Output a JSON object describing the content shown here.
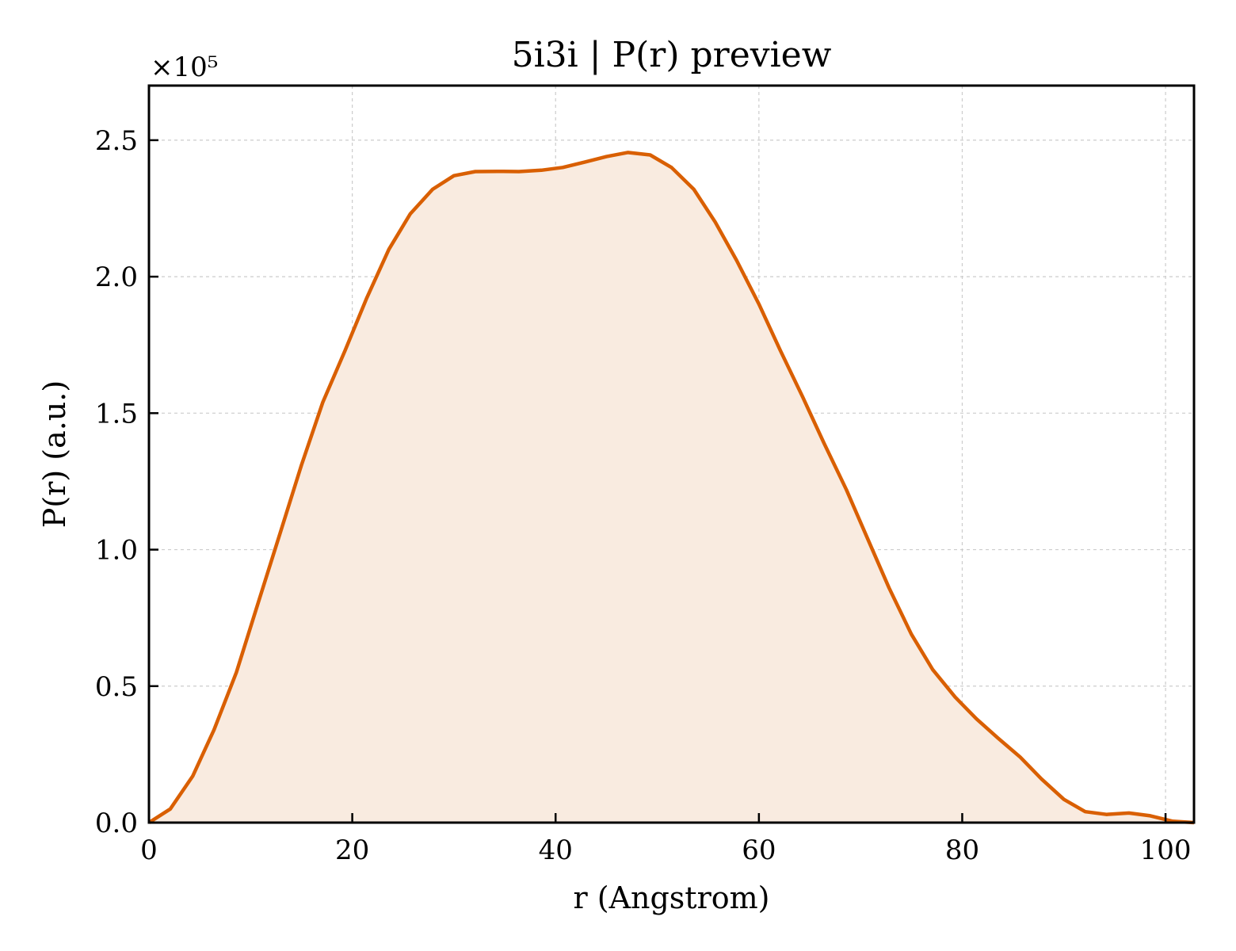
{
  "chart_data": {
    "type": "area",
    "title": "5i3i | P(r) preview",
    "xlabel": "r (Angstrom)",
    "ylabel": "P(r) (a.u.)",
    "y_multiplier": "×10⁵",
    "xlim": [
      0,
      102.8
    ],
    "ylim": [
      0,
      2.7
    ],
    "y_scale": "x1e5",
    "grid": true,
    "x_ticks": [
      0,
      20,
      40,
      60,
      80,
      100
    ],
    "y_ticks": [
      0.0,
      0.5,
      1.0,
      1.5,
      2.0,
      2.5
    ],
    "x_tick_labels": [
      "0",
      "20",
      "40",
      "60",
      "80",
      "100"
    ],
    "y_tick_labels": [
      "0.0",
      "0.5",
      "1.0",
      "1.5",
      "2.0",
      "2.5"
    ],
    "colors": {
      "line": "#d95f02",
      "fill": "#f9ebe0"
    },
    "series": [
      {
        "x": [
          0,
          2.1,
          4.3,
          6.4,
          8.6,
          10.7,
          12.9,
          15.0,
          17.1,
          19.3,
          21.4,
          23.6,
          25.7,
          27.9,
          30.0,
          32.1,
          34.3,
          36.4,
          38.6,
          40.7,
          42.9,
          45.0,
          47.1,
          49.3,
          51.4,
          53.6,
          55.7,
          57.8,
          60.0,
          62.1,
          64.3,
          66.4,
          68.6,
          70.7,
          72.8,
          75.0,
          77.1,
          79.3,
          81.4,
          83.5,
          85.7,
          87.8,
          90.0,
          92.1,
          94.2,
          96.4,
          98.5,
          100.7,
          102.8
        ],
        "y": [
          0.0,
          0.05,
          0.17,
          0.34,
          0.55,
          0.8,
          1.06,
          1.31,
          1.54,
          1.73,
          1.92,
          2.1,
          2.23,
          2.32,
          2.37,
          2.385,
          2.386,
          2.385,
          2.39,
          2.4,
          2.42,
          2.44,
          2.455,
          2.446,
          2.4,
          2.32,
          2.2,
          2.06,
          1.9,
          1.73,
          1.56,
          1.39,
          1.22,
          1.04,
          0.86,
          0.69,
          0.56,
          0.46,
          0.38,
          0.31,
          0.24,
          0.16,
          0.085,
          0.04,
          0.03,
          0.035,
          0.025,
          0.005,
          0.0
        ]
      }
    ]
  }
}
